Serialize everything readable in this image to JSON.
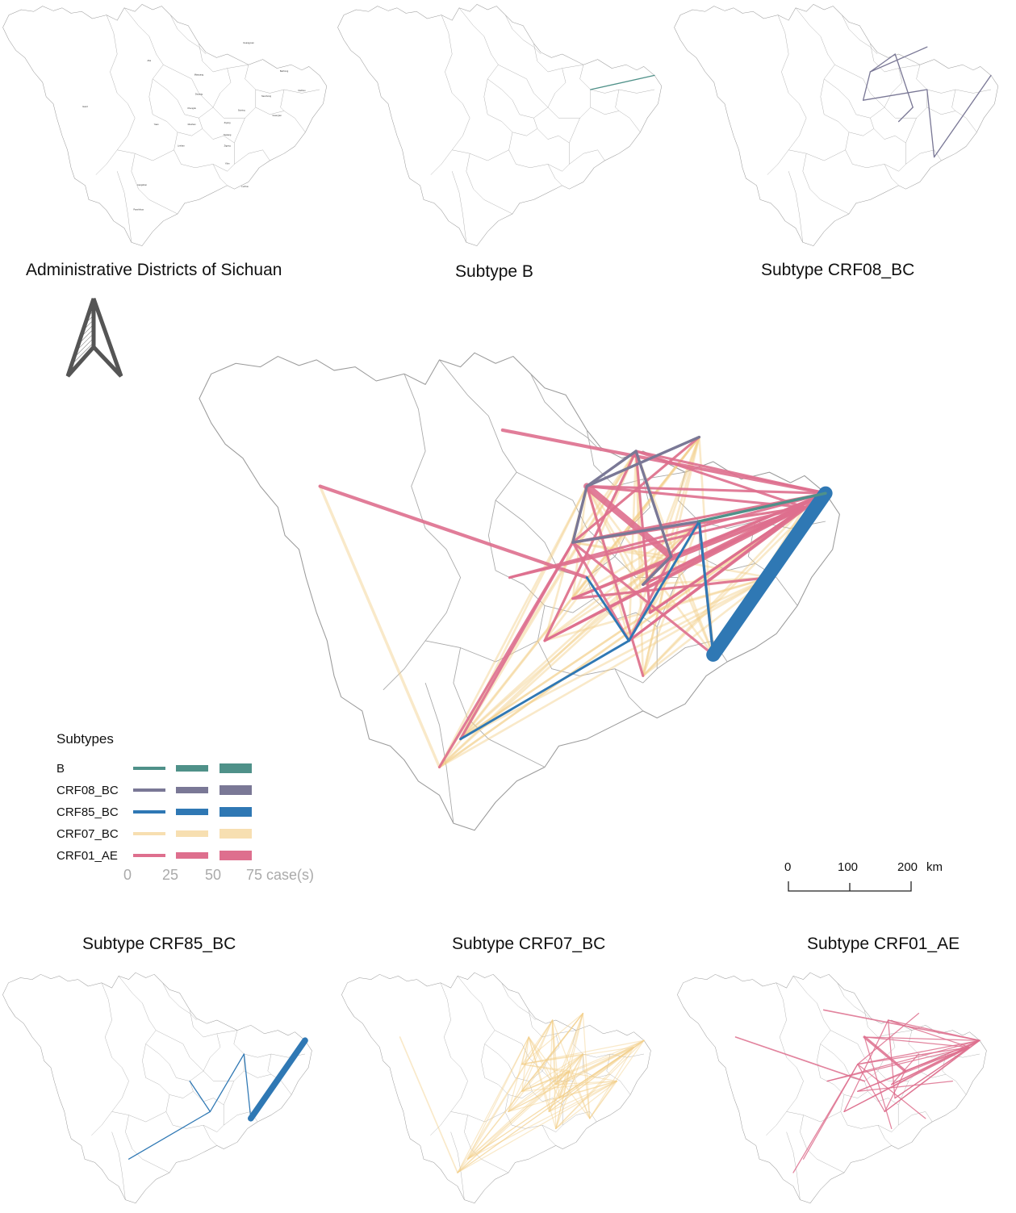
{
  "captions": {
    "admin": "Administrative Districts of Sichuan",
    "b": "Subtype B",
    "crf08": "Subtype CRF08_BC",
    "crf85": "Subtype CRF85_BC",
    "crf07": "Subtype CRF07_BC",
    "crf01": "Subtype CRF01_AE"
  },
  "districts": [
    "Aba",
    "Guangyuan",
    "Bazhong",
    "Mianyang",
    "Dazhou",
    "Ganzi",
    "Deyang",
    "Nanchong",
    "Chengdu",
    "Suining",
    "Guang'an",
    "Yaan",
    "Meishan",
    "Ziyang",
    "Neijiang",
    "Leshan",
    "Zigong",
    "Yibin",
    "Liangshan",
    "Luzhou",
    "Panzhihua"
  ],
  "legend": {
    "title": "Subtypes",
    "subtypes": [
      {
        "name": "B",
        "color": "#4f9189"
      },
      {
        "name": "CRF08_BC",
        "color": "#7a7896"
      },
      {
        "name": "CRF85_BC",
        "color": "#2f78b4"
      },
      {
        "name": "CRF07_BC",
        "color": "#f7dfb1"
      },
      {
        "name": "CRF01_AE",
        "color": "#de6f8e"
      }
    ],
    "ticks": [
      "0",
      "25",
      "50",
      "75 case(s)"
    ]
  },
  "scalebar": {
    "ticks": [
      "0",
      "100",
      "200"
    ],
    "unit": "km"
  },
  "north_arrow": "north-arrow-icon"
}
